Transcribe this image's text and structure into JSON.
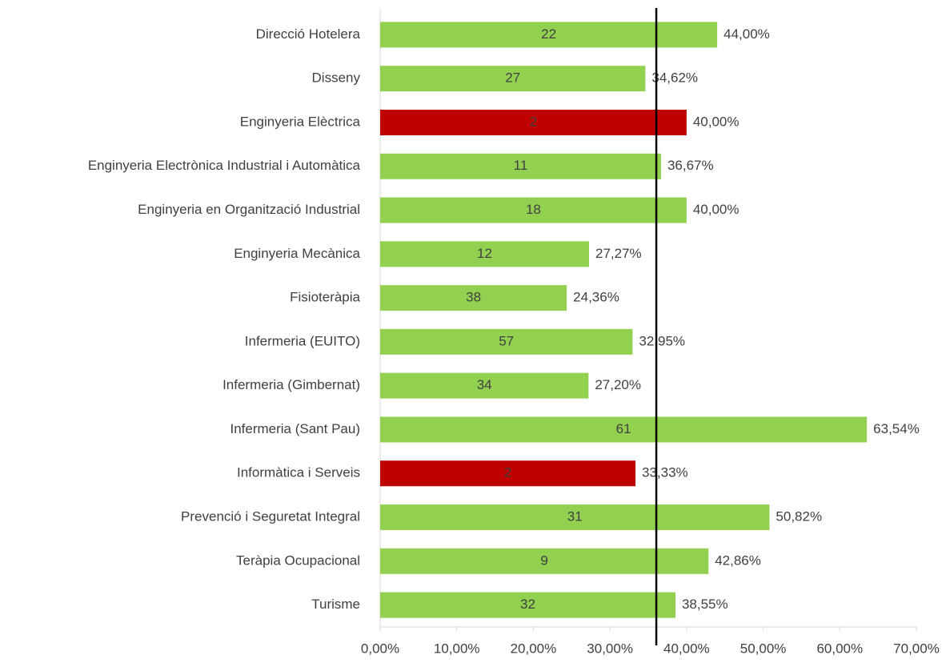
{
  "chart_data": {
    "type": "hbar",
    "categories": [
      "Direcció Hotelera",
      "Disseny",
      "Enginyeria Elèctrica",
      "Enginyeria Electrònica Industrial i Automàtica",
      "Enginyeria en Organització Industrial",
      "Enginyeria Mecànica",
      "Fisioteràpia",
      "Infermeria (EUITO)",
      "Infermeria (Gimbernat)",
      "Infermeria (Sant Pau)",
      "Informàtica i Serveis",
      "Prevenció i Seguretat Integral",
      "Teràpia Ocupacional",
      "Turisme"
    ],
    "values": [
      44.0,
      34.62,
      40.0,
      36.67,
      40.0,
      27.27,
      24.36,
      32.95,
      27.2,
      63.54,
      33.33,
      50.82,
      42.86,
      38.55
    ],
    "value_labels": [
      "44,00%",
      "34,62%",
      "40,00%",
      "36,67%",
      "40,00%",
      "27,27%",
      "24,36%",
      "32,95%",
      "27,20%",
      "63,54%",
      "33,33%",
      "50,82%",
      "42,86%",
      "38,55%"
    ],
    "counts": [
      22,
      27,
      2,
      11,
      18,
      12,
      38,
      57,
      34,
      61,
      2,
      31,
      9,
      32
    ],
    "colors": [
      "#92d050",
      "#92d050",
      "#c00000",
      "#92d050",
      "#92d050",
      "#92d050",
      "#92d050",
      "#92d050",
      "#92d050",
      "#92d050",
      "#c00000",
      "#92d050",
      "#92d050",
      "#92d050"
    ],
    "xlim": [
      0,
      70
    ],
    "xticks": [
      {
        "value": 0,
        "label": "0,00%"
      },
      {
        "value": 10,
        "label": "10,00%"
      },
      {
        "value": 20,
        "label": "20,00%"
      },
      {
        "value": 30,
        "label": "30,00%"
      },
      {
        "value": 40,
        "label": "40,00%"
      },
      {
        "value": 50,
        "label": "50,00%"
      },
      {
        "value": 60,
        "label": "60,00%"
      },
      {
        "value": 70,
        "label": "70,00%"
      }
    ],
    "reference_line": 36.05
  }
}
